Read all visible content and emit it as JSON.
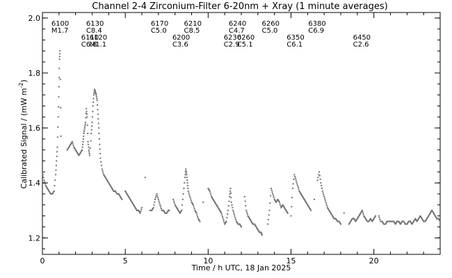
{
  "chart_data": {
    "type": "scatter",
    "title": "Channel 2-4   Zirconium-Filter   6-20nm + Xray   (1 minute averages)",
    "xlabel": "Time / h UTC, 18 Jan 2025",
    "ylabel_main": "Calibrated Signal / (mW m",
    "ylabel_exp": "-2",
    "ylabel_end": ")",
    "xlim": [
      0,
      24
    ],
    "ylim": [
      1.14,
      2.02
    ],
    "xticks": [
      0,
      5,
      10,
      15,
      20
    ],
    "xtick_labels": [
      "0",
      "5",
      "10",
      "15",
      "20"
    ],
    "yticks": [
      1.2,
      1.4,
      1.6,
      1.8,
      2.0
    ],
    "ytick_labels": [
      "1.2",
      "1.4",
      "1.6",
      "1.8",
      "2.0"
    ],
    "grid": false,
    "flares": [
      {
        "id": "6100",
        "cls": "M1.7",
        "x": 1.0,
        "row": 1
      },
      {
        "id": "6130",
        "cls": "C8.4",
        "x": 3.1,
        "row": 1
      },
      {
        "id": "6170",
        "cls": "C5.0",
        "x": 7.0,
        "row": 1
      },
      {
        "id": "6210",
        "cls": "C8.5",
        "x": 9.0,
        "row": 1
      },
      {
        "id": "6240",
        "cls": "C4.7",
        "x": 11.7,
        "row": 1
      },
      {
        "id": "6260",
        "cls": "C5.0",
        "x": 13.7,
        "row": 1
      },
      {
        "id": "6380",
        "cls": "C6.9",
        "x": 16.5,
        "row": 1
      },
      {
        "id": "6110",
        "cls": "C6.8",
        "x": 2.8,
        "row": 2
      },
      {
        "id": "6120",
        "cls": "M1.1",
        "x": 3.3,
        "row": 2
      },
      {
        "id": "6200",
        "cls": "C3.6",
        "x": 8.3,
        "row": 2
      },
      {
        "id": "6230",
        "cls": "C2.9",
        "x": 11.4,
        "row": 2
      },
      {
        "id": "6260",
        "cls": "C5.1",
        "x": 12.2,
        "row": 2
      },
      {
        "id": "6350",
        "cls": "C6.1",
        "x": 15.2,
        "row": 2
      },
      {
        "id": "6450",
        "cls": "C2.6",
        "x": 19.2,
        "row": 2
      }
    ],
    "series": [
      {
        "points": [
          [
            0.0,
            1.44
          ],
          [
            0.1,
            1.41
          ],
          [
            0.2,
            1.39
          ],
          [
            0.3,
            1.38
          ],
          [
            0.4,
            1.37
          ],
          [
            0.5,
            1.36
          ],
          [
            0.6,
            1.36
          ],
          [
            0.7,
            1.37
          ],
          [
            0.8,
            1.43
          ],
          [
            0.85,
            1.48
          ],
          [
            0.9,
            1.53
          ],
          [
            0.95,
            1.64
          ],
          [
            1.0,
            1.75
          ],
          [
            1.03,
            1.85
          ],
          [
            1.06,
            1.88
          ],
          [
            1.12,
            1.57
          ],
          [
            1.5,
            1.52
          ],
          [
            1.6,
            1.53
          ],
          [
            1.7,
            1.54
          ],
          [
            1.8,
            1.55
          ],
          [
            1.9,
            1.53
          ],
          [
            2.0,
            1.52
          ],
          [
            2.1,
            1.51
          ],
          [
            2.2,
            1.5
          ],
          [
            2.3,
            1.51
          ],
          [
            2.4,
            1.52
          ],
          [
            2.45,
            1.55
          ],
          [
            2.5,
            1.58
          ],
          [
            2.55,
            1.6
          ],
          [
            2.6,
            1.62
          ],
          [
            2.65,
            1.67
          ],
          [
            2.7,
            1.64
          ],
          [
            2.75,
            1.55
          ],
          [
            2.8,
            1.52
          ],
          [
            2.85,
            1.5
          ],
          [
            2.95,
            1.58
          ],
          [
            3.0,
            1.62
          ],
          [
            3.05,
            1.68
          ],
          [
            3.1,
            1.72
          ],
          [
            3.15,
            1.74
          ],
          [
            3.2,
            1.73
          ],
          [
            3.25,
            1.72
          ],
          [
            3.3,
            1.7
          ],
          [
            3.35,
            1.65
          ],
          [
            3.4,
            1.6
          ],
          [
            3.45,
            1.54
          ],
          [
            3.5,
            1.49
          ],
          [
            3.6,
            1.45
          ],
          [
            3.7,
            1.43
          ],
          [
            3.8,
            1.42
          ],
          [
            3.9,
            1.41
          ],
          [
            4.0,
            1.4
          ],
          [
            4.1,
            1.39
          ],
          [
            4.2,
            1.38
          ],
          [
            4.3,
            1.37
          ],
          [
            4.4,
            1.37
          ],
          [
            4.5,
            1.36
          ],
          [
            4.6,
            1.36
          ],
          [
            4.7,
            1.35
          ],
          [
            4.8,
            1.34
          ],
          [
            5.0,
            1.37
          ],
          [
            5.1,
            1.36
          ],
          [
            5.2,
            1.35
          ],
          [
            5.3,
            1.34
          ],
          [
            5.4,
            1.33
          ],
          [
            5.5,
            1.32
          ],
          [
            5.6,
            1.31
          ],
          [
            5.7,
            1.3
          ],
          [
            5.8,
            1.3
          ],
          [
            5.9,
            1.29
          ],
          [
            6.0,
            1.31
          ],
          [
            6.2,
            1.42
          ],
          [
            6.5,
            1.3
          ],
          [
            6.6,
            1.3
          ],
          [
            6.7,
            1.31
          ],
          [
            6.8,
            1.34
          ],
          [
            6.9,
            1.36
          ],
          [
            7.0,
            1.34
          ],
          [
            7.1,
            1.32
          ],
          [
            7.2,
            1.3
          ],
          [
            7.3,
            1.3
          ],
          [
            7.4,
            1.29
          ],
          [
            7.5,
            1.29
          ],
          [
            7.6,
            1.3
          ],
          [
            7.65,
            1.3
          ],
          [
            7.9,
            1.34
          ],
          [
            8.0,
            1.32
          ],
          [
            8.1,
            1.31
          ],
          [
            8.2,
            1.3
          ],
          [
            8.3,
            1.29
          ],
          [
            8.4,
            1.3
          ],
          [
            8.5,
            1.36
          ],
          [
            8.6,
            1.42
          ],
          [
            8.65,
            1.45
          ],
          [
            8.7,
            1.43
          ],
          [
            8.75,
            1.4
          ],
          [
            8.8,
            1.37
          ],
          [
            8.9,
            1.35
          ],
          [
            9.0,
            1.33
          ],
          [
            9.1,
            1.32
          ],
          [
            9.2,
            1.3
          ],
          [
            9.3,
            1.29
          ],
          [
            9.4,
            1.27
          ],
          [
            9.5,
            1.26
          ],
          [
            9.7,
            1.33
          ],
          [
            10.0,
            1.38
          ],
          [
            10.1,
            1.37
          ],
          [
            10.2,
            1.35
          ],
          [
            10.3,
            1.34
          ],
          [
            10.4,
            1.33
          ],
          [
            10.5,
            1.32
          ],
          [
            10.6,
            1.31
          ],
          [
            10.7,
            1.3
          ],
          [
            10.8,
            1.29
          ],
          [
            10.9,
            1.27
          ],
          [
            11.0,
            1.25
          ],
          [
            11.1,
            1.26
          ],
          [
            11.2,
            1.3
          ],
          [
            11.3,
            1.35
          ],
          [
            11.35,
            1.38
          ],
          [
            11.4,
            1.33
          ],
          [
            11.5,
            1.3
          ],
          [
            11.6,
            1.28
          ],
          [
            11.7,
            1.26
          ],
          [
            11.8,
            1.25
          ],
          [
            11.9,
            1.25
          ],
          [
            12.0,
            1.24
          ],
          [
            12.2,
            1.35
          ],
          [
            12.3,
            1.3
          ],
          [
            12.4,
            1.28
          ],
          [
            12.5,
            1.27
          ],
          [
            12.6,
            1.26
          ],
          [
            12.7,
            1.25
          ],
          [
            12.8,
            1.25
          ],
          [
            12.9,
            1.24
          ],
          [
            13.0,
            1.23
          ],
          [
            13.1,
            1.22
          ],
          [
            13.2,
            1.22
          ],
          [
            13.25,
            1.21
          ],
          [
            13.6,
            1.25
          ],
          [
            13.7,
            1.3
          ],
          [
            13.8,
            1.38
          ],
          [
            13.9,
            1.36
          ],
          [
            14.0,
            1.34
          ],
          [
            14.1,
            1.33
          ],
          [
            14.2,
            1.34
          ],
          [
            14.3,
            1.33
          ],
          [
            14.4,
            1.31
          ],
          [
            14.5,
            1.32
          ],
          [
            14.6,
            1.31
          ],
          [
            14.7,
            1.3
          ],
          [
            14.8,
            1.29
          ],
          [
            15.0,
            1.28
          ],
          [
            15.1,
            1.38
          ],
          [
            15.2,
            1.43
          ],
          [
            15.3,
            1.41
          ],
          [
            15.4,
            1.39
          ],
          [
            15.5,
            1.37
          ],
          [
            15.6,
            1.36
          ],
          [
            15.7,
            1.35
          ],
          [
            15.8,
            1.34
          ],
          [
            15.9,
            1.33
          ],
          [
            16.0,
            1.32
          ],
          [
            16.1,
            1.31
          ],
          [
            16.2,
            1.3
          ],
          [
            16.4,
            1.34
          ],
          [
            16.6,
            1.41
          ],
          [
            16.7,
            1.44
          ],
          [
            16.8,
            1.4
          ],
          [
            16.9,
            1.37
          ],
          [
            17.0,
            1.35
          ],
          [
            17.1,
            1.33
          ],
          [
            17.2,
            1.31
          ],
          [
            17.3,
            1.3
          ],
          [
            17.4,
            1.29
          ],
          [
            17.5,
            1.28
          ],
          [
            17.6,
            1.27
          ],
          [
            17.7,
            1.27
          ],
          [
            17.8,
            1.26
          ],
          [
            17.9,
            1.26
          ],
          [
            18.0,
            1.25
          ],
          [
            18.2,
            1.29
          ],
          [
            18.5,
            1.25
          ],
          [
            18.6,
            1.26
          ],
          [
            18.7,
            1.27
          ],
          [
            18.8,
            1.27
          ],
          [
            18.9,
            1.26
          ],
          [
            19.0,
            1.27
          ],
          [
            19.1,
            1.28
          ],
          [
            19.2,
            1.29
          ],
          [
            19.3,
            1.3
          ],
          [
            19.4,
            1.28
          ],
          [
            19.5,
            1.27
          ],
          [
            19.6,
            1.26
          ],
          [
            19.7,
            1.26
          ],
          [
            19.8,
            1.27
          ],
          [
            19.9,
            1.26
          ],
          [
            20.0,
            1.27
          ],
          [
            20.1,
            1.28
          ],
          [
            20.3,
            1.28
          ],
          [
            20.4,
            1.26
          ],
          [
            20.5,
            1.26
          ],
          [
            20.6,
            1.25
          ],
          [
            20.7,
            1.25
          ],
          [
            20.8,
            1.26
          ],
          [
            20.9,
            1.26
          ],
          [
            21.0,
            1.26
          ],
          [
            21.1,
            1.26
          ],
          [
            21.2,
            1.26
          ],
          [
            21.3,
            1.25
          ],
          [
            21.4,
            1.26
          ],
          [
            21.5,
            1.26
          ],
          [
            21.6,
            1.25
          ],
          [
            21.7,
            1.26
          ],
          [
            21.8,
            1.26
          ],
          [
            21.9,
            1.25
          ],
          [
            22.0,
            1.25
          ],
          [
            22.1,
            1.26
          ],
          [
            22.2,
            1.26
          ],
          [
            22.3,
            1.25
          ],
          [
            22.4,
            1.26
          ],
          [
            22.5,
            1.27
          ],
          [
            22.6,
            1.26
          ],
          [
            22.7,
            1.27
          ],
          [
            22.8,
            1.28
          ],
          [
            22.9,
            1.27
          ],
          [
            23.0,
            1.26
          ],
          [
            23.1,
            1.26
          ],
          [
            23.2,
            1.27
          ],
          [
            23.3,
            1.28
          ],
          [
            23.4,
            1.29
          ],
          [
            23.5,
            1.3
          ],
          [
            23.6,
            1.29
          ],
          [
            23.7,
            1.28
          ],
          [
            23.8,
            1.27
          ],
          [
            23.9,
            1.27
          ],
          [
            24.0,
            1.26
          ]
        ]
      }
    ]
  }
}
